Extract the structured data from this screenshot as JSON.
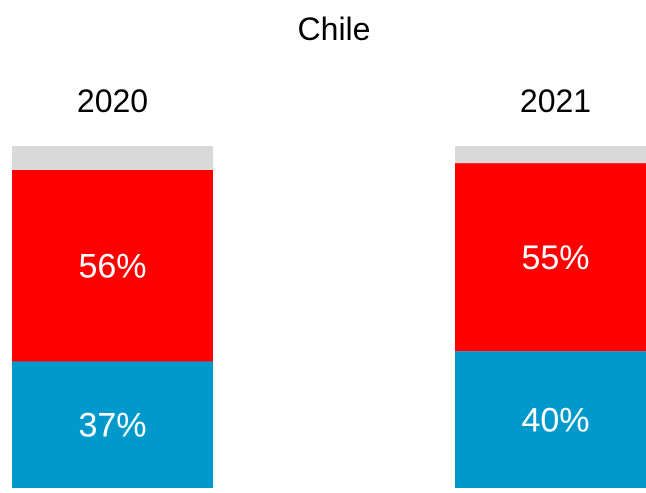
{
  "chart_data": {
    "type": "bar",
    "stacked": true,
    "title": "Chile",
    "categories": [
      "2020",
      "2021"
    ],
    "series": [
      {
        "values": [
          37,
          40
        ],
        "labels": [
          "37%",
          "40%"
        ],
        "color": "#0099CC"
      },
      {
        "values": [
          56,
          55
        ],
        "labels": [
          "56%",
          "55%"
        ],
        "color": "#FF0000"
      },
      {
        "values": [
          7,
          5
        ],
        "color": "#D9D9D9"
      }
    ],
    "ylim": [
      0,
      100
    ],
    "grid": false,
    "legend": "none"
  }
}
